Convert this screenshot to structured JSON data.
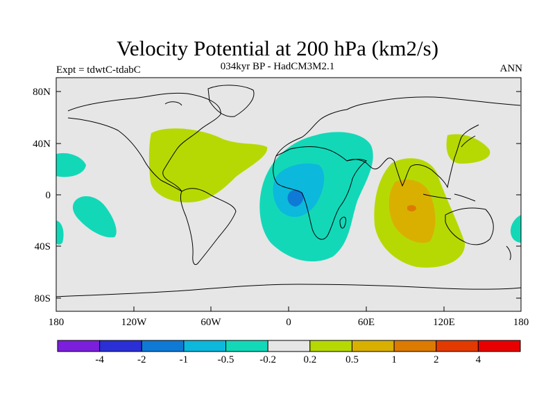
{
  "header": {
    "title": "Velocity Potential at 200 hPa (km2/s)",
    "subtitle": "034kyr BP - HadCM3M2.1",
    "left_label": "Expt = tdwtC-tdabC",
    "right_label": "ANN"
  },
  "map": {
    "lat_ticks": [
      "80N",
      "40N",
      "0",
      "40S",
      "80S"
    ],
    "lon_ticks": [
      "180",
      "120W",
      "60W",
      "0",
      "60E",
      "120E",
      "180"
    ],
    "background_color": "#e6e6e6"
  },
  "colorbar": {
    "labels": [
      "-4",
      "-2",
      "-1",
      "-0.5",
      "-0.2",
      "0.2",
      "0.5",
      "1",
      "2",
      "4"
    ],
    "colors": [
      "#7b1fdc",
      "#2b2fd6",
      "#0f7ad6",
      "#0cb8dc",
      "#12d8b8",
      "#e6e6e6",
      "#b6d904",
      "#d9b000",
      "#dd7a00",
      "#e23a00",
      "#e80000"
    ]
  }
}
